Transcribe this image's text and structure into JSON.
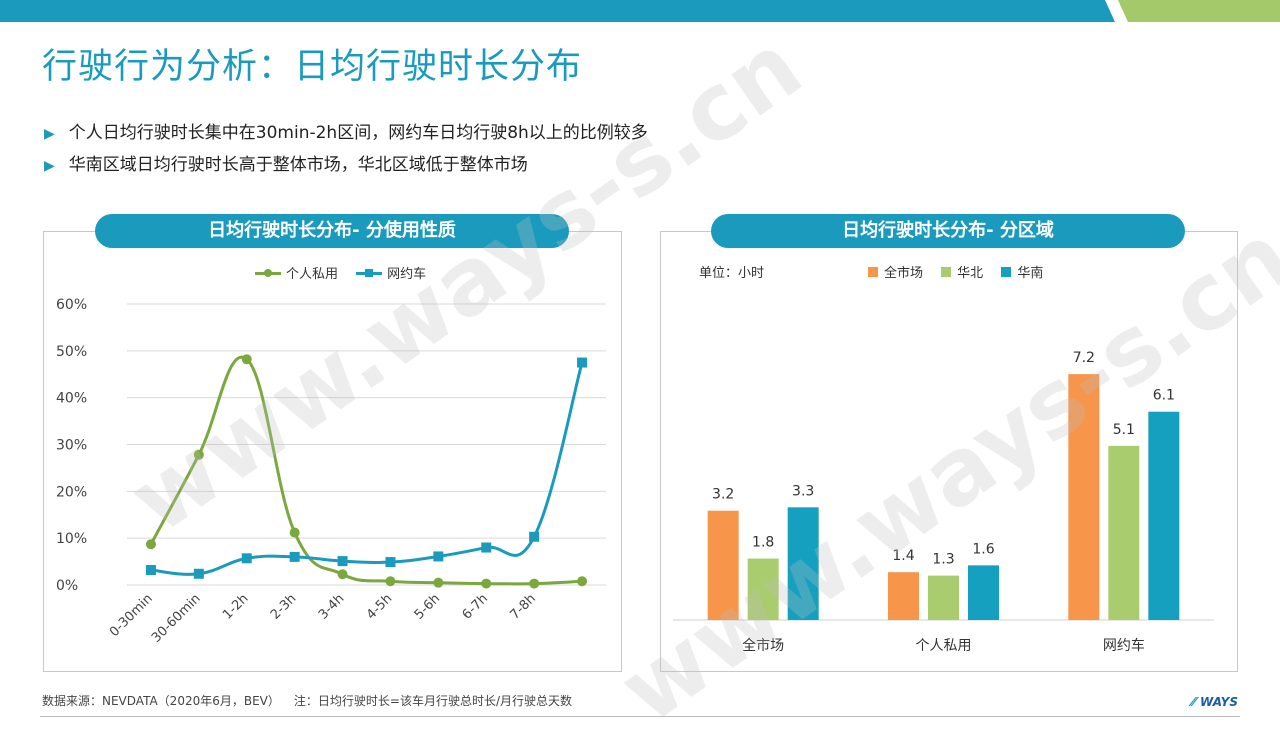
{
  "title": "行驶行为分析：日均行驶时长分布",
  "bullets": [
    "个人日均行驶时长集中在30min-2h区间，网约车日均行驶8h以上的比例较多",
    "华南区域日均行驶时长高于整体市场，华北区域低于整体市场"
  ],
  "watermark": "www.ways-s.cn",
  "footer": {
    "source": "数据来源：NEVDATA（2020年6月，BEV）",
    "note": "注：日均行驶时长=该车月行驶总时长/月行驶总天数",
    "logo": "WAYS"
  },
  "colors": {
    "accent": "#1a9bbd",
    "top_bar_green": "#a3c96b",
    "private_line": "#7ba83e",
    "ridehail_line": "#1a9bbd",
    "orange": "#f7954a",
    "light_green": "#a9cd6e",
    "teal": "#15a0bf"
  },
  "chart_data": [
    {
      "type": "line",
      "title": "日均行驶时长分布- 分使用性质",
      "categories": [
        "0-30min",
        "30-60min",
        "1-2h",
        "2-3h",
        "3-4h",
        "4-5h",
        "5-6h",
        "6-7h",
        "7-8h",
        ""
      ],
      "series": [
        {
          "name": "个人私用",
          "values": [
            8.7,
            27.8,
            48.2,
            11.2,
            2.3,
            0.8,
            0.5,
            0.3,
            0.3,
            0.8
          ]
        },
        {
          "name": "网约车",
          "values": [
            3.2,
            2.4,
            5.7,
            6.0,
            5.1,
            4.9,
            6.1,
            8.0,
            10.3,
            47.5
          ]
        }
      ],
      "yticks": [
        "0%",
        "10%",
        "20%",
        "30%",
        "40%",
        "50%",
        "60%"
      ],
      "ylim": [
        0,
        60
      ],
      "grid": true,
      "legend": "top-center"
    },
    {
      "type": "bar",
      "title": "日均行驶时长分布- 分区域",
      "unit": "单位：小时",
      "categories": [
        "全市场",
        "个人私用",
        "网约车"
      ],
      "series": [
        {
          "name": "全市场",
          "values": [
            3.2,
            1.4,
            7.2
          ]
        },
        {
          "name": "华北",
          "values": [
            1.8,
            1.3,
            5.1
          ]
        },
        {
          "name": "华南",
          "values": [
            3.3,
            1.6,
            6.1
          ]
        }
      ],
      "ylim": [
        0,
        8.2
      ],
      "grid": false,
      "legend": "top"
    }
  ]
}
